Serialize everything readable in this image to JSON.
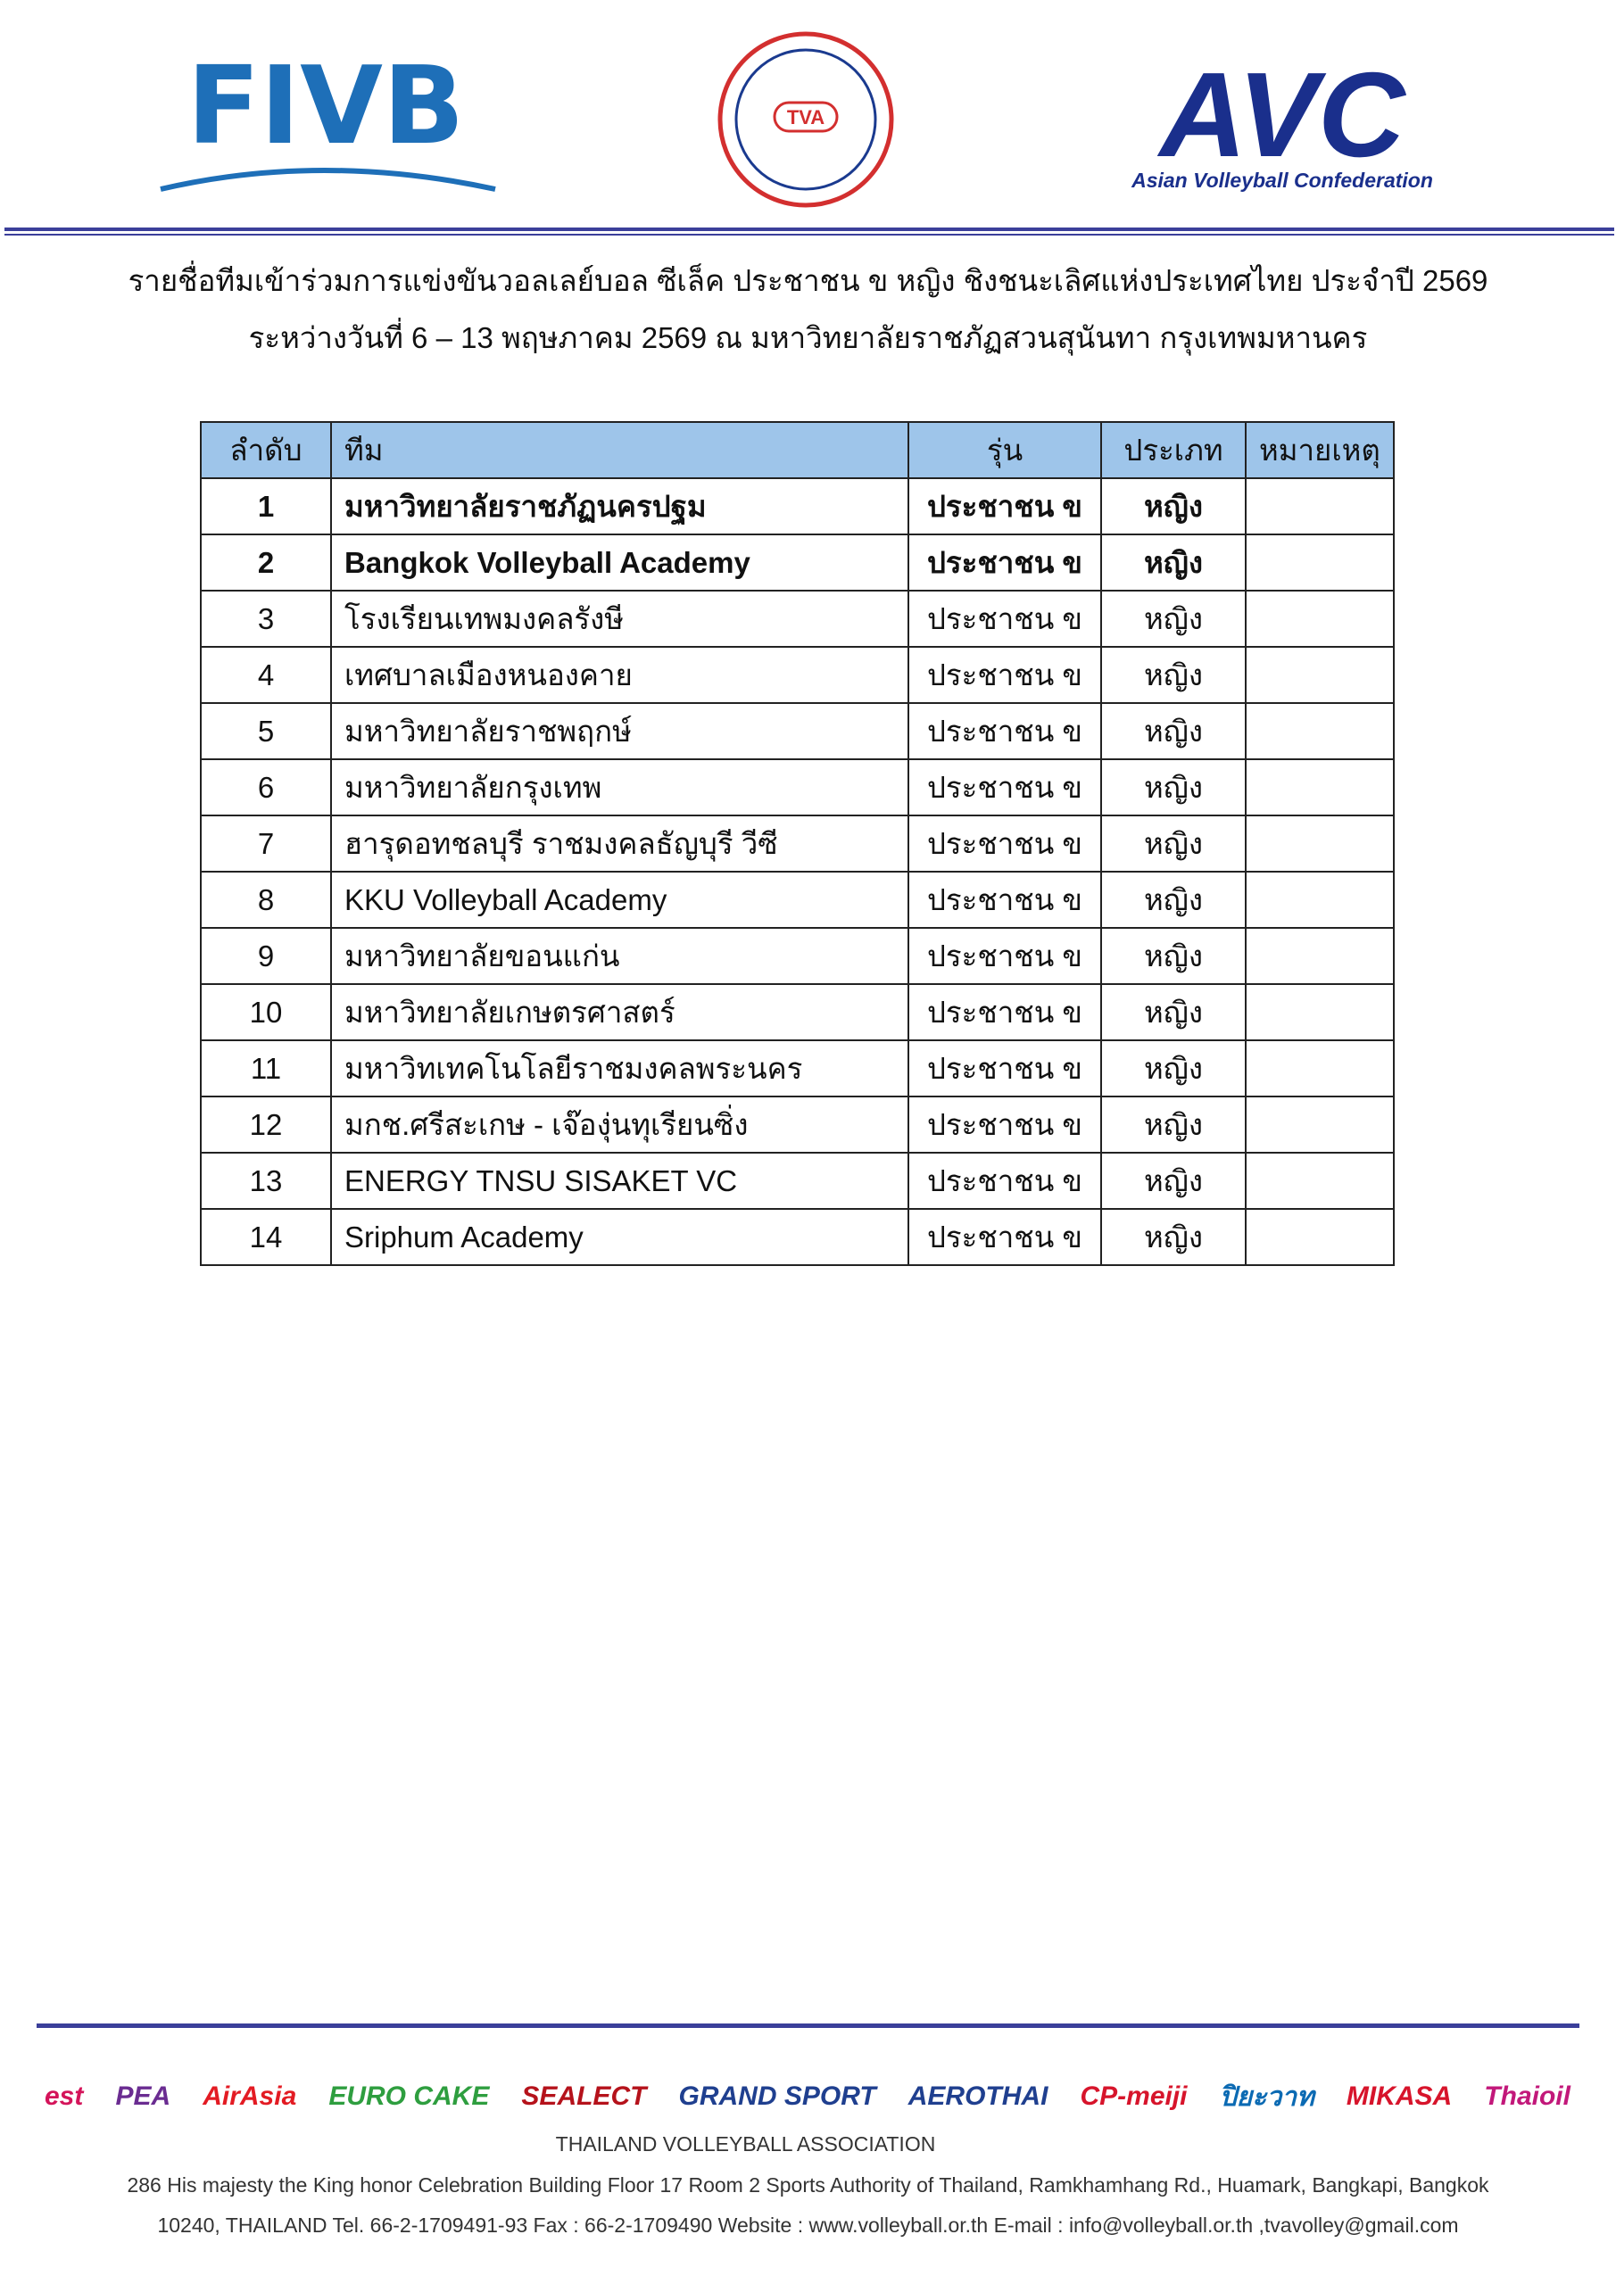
{
  "header": {
    "logos": {
      "fivb": "FIVB",
      "tva": "TVA",
      "avc": "AVC",
      "avc_caption": "Asian Volleyball Confederation"
    },
    "title": "รายชื่อทีมเข้าร่วมการแข่งขันวอลเลย์บอล ซีเล็ค ประชาชน ข หญิง  ชิงชนะเลิศแห่งประเทศไทย ประจำปี 2569",
    "subtitle": "ระหว่างวันที่ 6 – 13 พฤษภาคม 2569 ณ มหาวิทยาลัยราชภัฏสวนสุนันทา กรุงเทพมหานคร"
  },
  "table": {
    "columns": [
      "ลำดับ",
      "ทีม",
      "รุ่น",
      "ประเภท",
      "หมายเหตุ"
    ],
    "rows": [
      {
        "cells": [
          "1",
          "มหาวิทยาลัยราชภัฏนครปฐม",
          "ประชาชน ข",
          "หญิง"
        ],
        "bold": true
      },
      {
        "cells": [
          "2",
          "Bangkok Volleyball Academy",
          "ประชาชน ข",
          "หญิง"
        ],
        "bold": true
      },
      {
        "cells": [
          "3",
          "โรงเรียนเทพมงคลรังษี",
          "ประชาชน ข",
          "หญิง"
        ]
      },
      {
        "cells": [
          "4",
          "เทศบาลเมืองหนองคาย",
          "ประชาชน ข",
          "หญิง"
        ]
      },
      {
        "cells": [
          "5",
          "มหาวิทยาลัยราชพฤกษ์",
          "ประชาชน ข",
          "หญิง"
        ]
      },
      {
        "cells": [
          "6",
          "มหาวิทยาลัยกรุงเทพ",
          "ประชาชน ข",
          "หญิง"
        ]
      },
      {
        "cells": [
          "7",
          "ฮารุดอทชลบุรี ราชมงคลธัญบุรี วีซี",
          "ประชาชน ข",
          "หญิง"
        ]
      },
      {
        "cells": [
          "8",
          "KKU Volleyball Academy",
          "ประชาชน ข",
          "หญิง"
        ]
      },
      {
        "cells": [
          "9",
          "มหาวิทยาลัยขอนแก่น",
          "ประชาชน ข",
          "หญิง"
        ]
      },
      {
        "cells": [
          "10",
          "มหาวิทยาลัยเกษตรศาสตร์",
          "ประชาชน ข",
          "หญิง"
        ]
      },
      {
        "cells": [
          "11",
          "มหาวิทเทคโนโลยีราชมงคลพระนคร",
          "ประชาชน ข",
          "หญิง"
        ]
      },
      {
        "cells": [
          "12",
          "มกช.ศรีสะเกษ - เจ๊องุ่นทุเรียนซิ่ง",
          "ประชาชน ข",
          "หญิง"
        ]
      },
      {
        "cells": [
          "13",
          "ENERGY TNSU SISAKET VC",
          "ประชาชน ข",
          "หญิง"
        ]
      },
      {
        "cells": [
          "14",
          "Sriphum Academy",
          "ประชาชน ข",
          "หญิง"
        ]
      }
    ]
  },
  "footer": {
    "sponsors": [
      {
        "text": "est",
        "color": "#d4145a"
      },
      {
        "text": "PEA",
        "color": "#6a2c91"
      },
      {
        "text": "AirAsia",
        "color": "#e31b23"
      },
      {
        "text": "EURO CAKE",
        "color": "#2e9e3f"
      },
      {
        "text": "SEALECT",
        "color": "#b5121b"
      },
      {
        "text": "GRAND SPORT",
        "color": "#1f3f8f"
      },
      {
        "text": "AEROTHAI",
        "color": "#1f3f8f"
      },
      {
        "text": "CP-meiji",
        "color": "#d7142b"
      },
      {
        "text": "ปิยะวาท",
        "color": "#0b6ab3"
      },
      {
        "text": "MIKASA",
        "color": "#d7142b"
      },
      {
        "text": "Thaioil",
        "color": "#c2187a"
      }
    ],
    "organization": "THAILAND VOLLEYBALL ASSOCIATION",
    "address": [
      "286 His majesty the King honor Celebration Building Floor 17 Room 2 Sports Authority of Thailand, Ramkhamhang Rd., Huamark, Bangkapi, Bangkok",
      "10240, THAILAND Tel. 66-2-1709491-93  Fax : 66-2-1709490 Website : www.volleyball.or.th  E-mail : info@volleyball.or.th ,tvavolley@gmail.com"
    ]
  }
}
